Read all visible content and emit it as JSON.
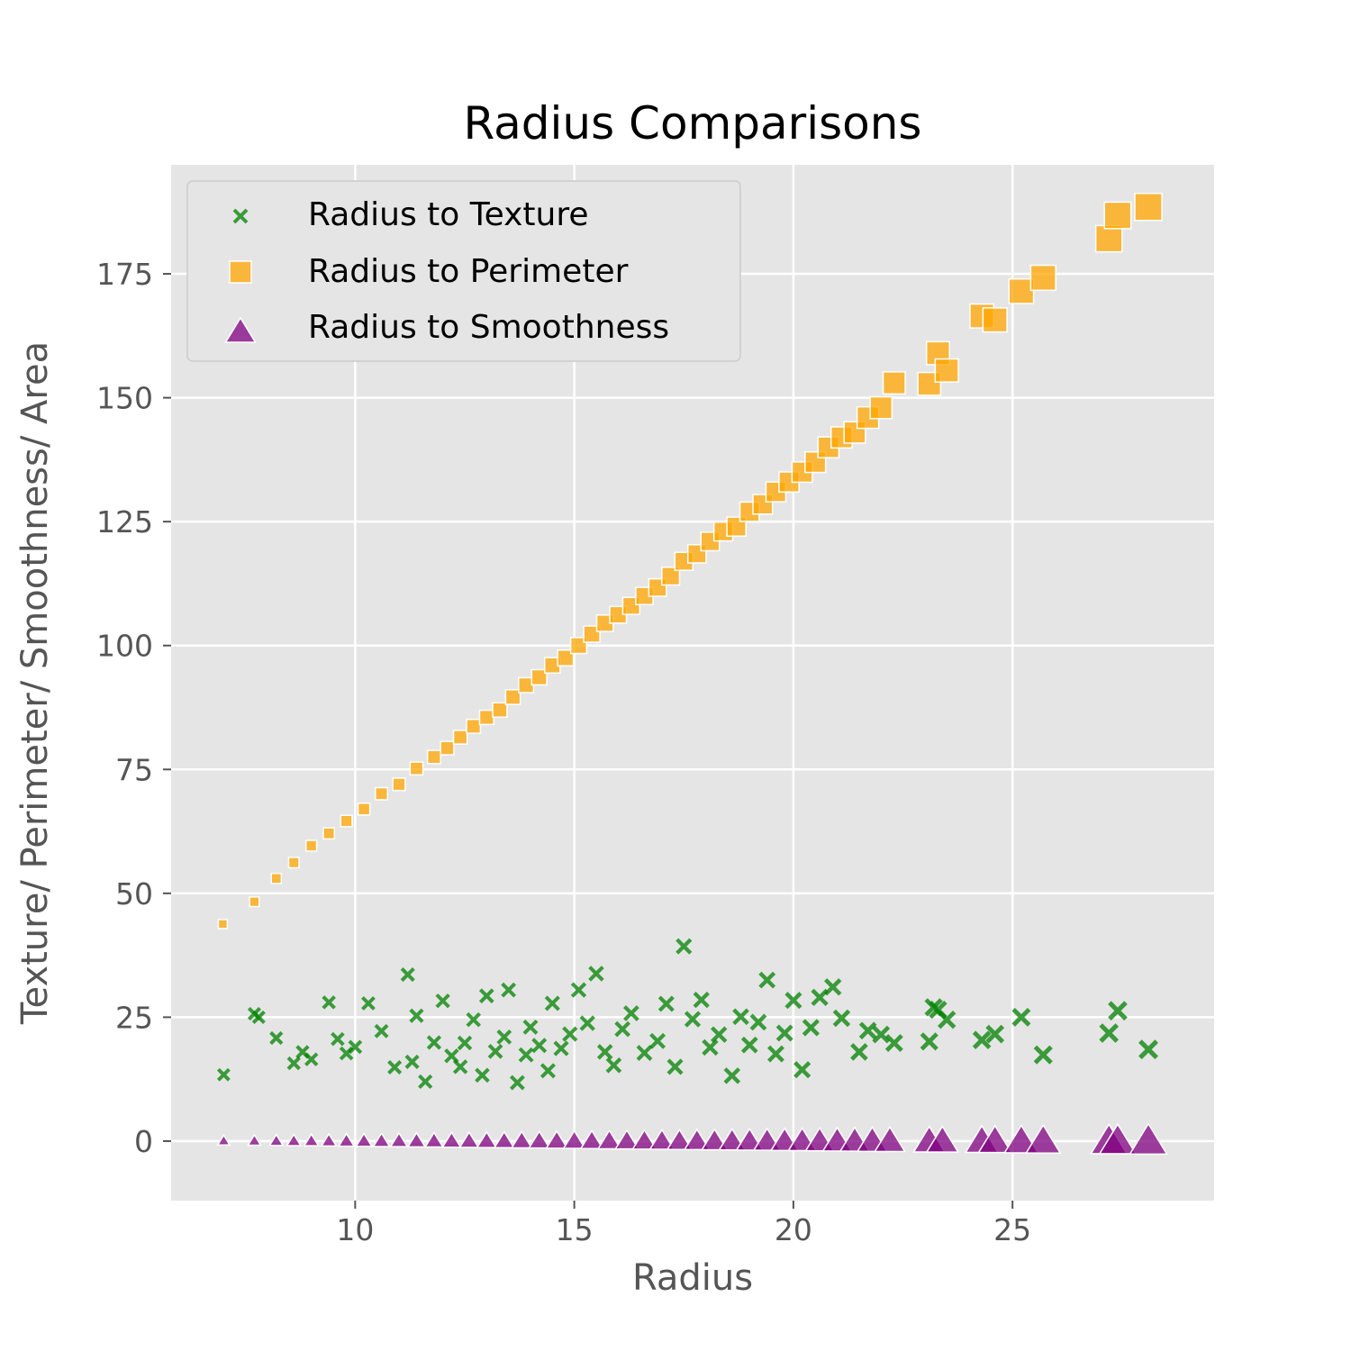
{
  "chart_data": {
    "type": "scatter",
    "title": "Radius Comparisons",
    "xlabel": "Radius",
    "ylabel": "Texture/ Perimeter/ Smoothness/ Area",
    "xlim": [
      5.8,
      29.6
    ],
    "ylim": [
      -12,
      197
    ],
    "xticks": [
      10,
      15,
      20,
      25
    ],
    "yticks": [
      0,
      25,
      50,
      75,
      100,
      125,
      150,
      175
    ],
    "grid": true,
    "legend_position": "top-left",
    "colors": {
      "texture": "#008000",
      "perimeter": "#ffa500",
      "smoothness": "#800080",
      "background": "#e5e5e5",
      "grid": "#ffffff"
    },
    "series": [
      {
        "name": "Radius to Texture",
        "marker": "x",
        "x": [
          7.0,
          7.7,
          7.8,
          8.2,
          8.6,
          8.8,
          9.0,
          9.4,
          9.6,
          9.8,
          10.0,
          10.3,
          10.6,
          10.9,
          11.2,
          11.3,
          11.4,
          11.6,
          11.8,
          12.0,
          12.2,
          12.4,
          12.5,
          12.7,
          12.9,
          13.0,
          13.2,
          13.4,
          13.5,
          13.7,
          13.9,
          14.0,
          14.2,
          14.4,
          14.5,
          14.7,
          14.9,
          15.1,
          15.3,
          15.5,
          15.7,
          15.9,
          16.1,
          16.3,
          16.6,
          16.9,
          17.1,
          17.3,
          17.5,
          17.7,
          17.9,
          18.1,
          18.3,
          18.6,
          18.8,
          19.0,
          19.2,
          19.4,
          19.6,
          19.8,
          20.0,
          20.2,
          20.4,
          20.6,
          20.9,
          21.1,
          21.5,
          21.7,
          22.0,
          22.3,
          23.1,
          23.2,
          23.3,
          23.5,
          24.3,
          24.6,
          25.2,
          25.7,
          27.2,
          27.4,
          28.1
        ],
        "y": [
          13.4,
          25.7,
          25.0,
          20.8,
          15.7,
          18.0,
          16.5,
          28.0,
          20.6,
          17.7,
          19.0,
          27.8,
          22.2,
          14.9,
          33.6,
          16.0,
          25.3,
          12.0,
          19.9,
          28.3,
          17.2,
          15.0,
          19.8,
          24.5,
          13.3,
          29.3,
          18.1,
          21.0,
          30.5,
          11.8,
          17.4,
          23.0,
          19.3,
          14.2,
          27.8,
          18.7,
          21.6,
          30.5,
          23.8,
          33.8,
          18.0,
          15.3,
          22.6,
          25.8,
          17.8,
          20.2,
          27.7,
          15.0,
          39.3,
          24.6,
          28.5,
          18.9,
          21.5,
          13.2,
          25.1,
          19.4,
          24.0,
          32.5,
          17.6,
          21.8,
          28.4,
          14.4,
          22.9,
          29.0,
          31.1,
          24.8,
          18.0,
          22.3,
          21.5,
          19.8,
          20.1,
          27.0,
          26.5,
          24.5,
          20.4,
          21.6,
          25.0,
          17.4,
          21.8,
          26.3,
          18.5
        ]
      },
      {
        "name": "Radius to Perimeter",
        "marker": "square",
        "x": [
          6.98,
          7.7,
          8.2,
          8.6,
          9.0,
          9.4,
          9.8,
          10.2,
          10.6,
          11.0,
          11.4,
          11.8,
          12.1,
          12.4,
          12.7,
          13.0,
          13.3,
          13.6,
          13.9,
          14.2,
          14.5,
          14.8,
          15.1,
          15.4,
          15.7,
          16.0,
          16.3,
          16.6,
          16.9,
          17.2,
          17.5,
          17.8,
          18.1,
          18.4,
          18.7,
          19.0,
          19.3,
          19.6,
          19.9,
          20.2,
          20.5,
          20.8,
          21.1,
          21.4,
          21.7,
          22.0,
          22.3,
          23.1,
          23.3,
          23.5,
          24.3,
          24.6,
          25.2,
          25.7,
          27.2,
          27.4,
          28.1
        ],
        "y": [
          43.8,
          48.3,
          53.0,
          56.2,
          59.6,
          62.1,
          64.6,
          67.0,
          70.1,
          72.0,
          75.2,
          77.5,
          79.3,
          81.5,
          83.7,
          85.5,
          87.0,
          89.6,
          92.0,
          93.6,
          96.0,
          97.5,
          100.0,
          102.3,
          104.5,
          106.2,
          108.0,
          110.0,
          111.7,
          114.0,
          117.0,
          118.5,
          121.0,
          123.0,
          124.0,
          127.0,
          128.5,
          131.0,
          133.0,
          135.0,
          137.0,
          140.0,
          142.0,
          143.0,
          146.0,
          148.0,
          153.0,
          152.8,
          159.0,
          155.5,
          166.5,
          165.7,
          171.5,
          174.2,
          182.1,
          186.8,
          188.5
        ]
      },
      {
        "name": "Radius to Smoothness",
        "marker": "triangle",
        "x": [
          7.0,
          7.7,
          8.2,
          8.6,
          9.0,
          9.4,
          9.8,
          10.2,
          10.6,
          11.0,
          11.4,
          11.8,
          12.2,
          12.6,
          13.0,
          13.4,
          13.8,
          14.2,
          14.6,
          15.0,
          15.4,
          15.8,
          16.2,
          16.6,
          17.0,
          17.4,
          17.8,
          18.2,
          18.6,
          19.0,
          19.4,
          19.8,
          20.2,
          20.6,
          21.0,
          21.4,
          21.8,
          22.2,
          23.1,
          23.4,
          24.3,
          24.6,
          25.2,
          25.7,
          27.2,
          27.4,
          28.1
        ],
        "y": [
          0.1,
          0.1,
          0.1,
          0.1,
          0.1,
          0.1,
          0.1,
          0.1,
          0.1,
          0.1,
          0.1,
          0.1,
          0.1,
          0.1,
          0.1,
          0.1,
          0.1,
          0.1,
          0.1,
          0.1,
          0.1,
          0.1,
          0.1,
          0.1,
          0.1,
          0.1,
          0.1,
          0.1,
          0.1,
          0.1,
          0.1,
          0.1,
          0.1,
          0.1,
          0.1,
          0.1,
          0.1,
          0.1,
          0.1,
          0.1,
          0.1,
          0.1,
          0.1,
          0.1,
          0.1,
          0.1,
          0.1
        ]
      }
    ]
  }
}
